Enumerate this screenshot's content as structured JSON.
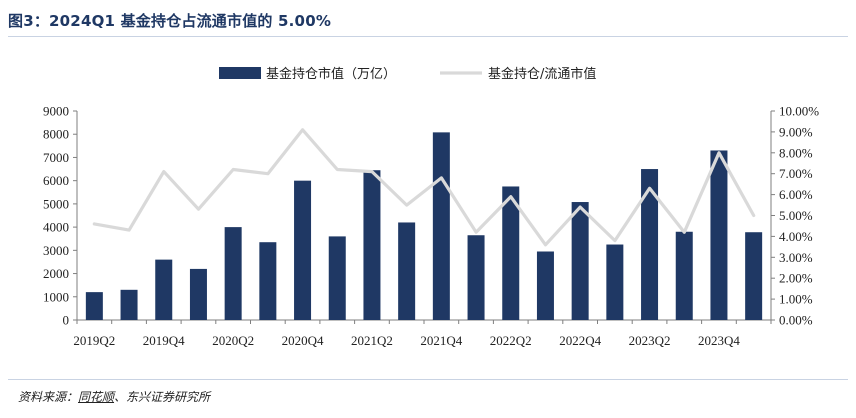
{
  "title": "图3：2024Q1 基金持仓占流通市值的 5.00%",
  "source": {
    "prefix": "资料来源：",
    "link": "同花顺",
    "suffix": "、东兴证券研究所"
  },
  "chart_data": {
    "type": "bar",
    "categories": [
      "2019Q2",
      "2019Q3",
      "2019Q4",
      "2020Q1",
      "2020Q2",
      "2020Q3",
      "2020Q4",
      "2021Q1",
      "2021Q2",
      "2021Q3",
      "2021Q4",
      "2022Q1",
      "2022Q2",
      "2022Q3",
      "2022Q4",
      "2023Q1",
      "2023Q2",
      "2023Q3",
      "2023Q4",
      "2024Q1"
    ],
    "x_tick_labels": [
      "2019Q2",
      "2019Q4",
      "2020Q2",
      "2020Q4",
      "2021Q2",
      "2021Q4",
      "2022Q2",
      "2022Q4",
      "2023Q2",
      "2023Q4"
    ],
    "series": [
      {
        "name": "基金持仓市值（万亿）",
        "type": "bar",
        "axis": "left",
        "color": "#1f3864",
        "values": [
          1200,
          1300,
          2600,
          2200,
          4000,
          3350,
          6000,
          3600,
          6450,
          4200,
          8080,
          3650,
          5750,
          2950,
          5080,
          3250,
          6500,
          3800,
          7300,
          3780
        ]
      },
      {
        "name": "基金持仓/流通市值",
        "type": "line",
        "axis": "right",
        "color": "#d9d9d9",
        "values": [
          4.6,
          4.3,
          7.1,
          5.3,
          7.2,
          7.0,
          9.1,
          7.2,
          7.1,
          5.5,
          6.8,
          4.2,
          5.9,
          3.6,
          5.4,
          3.8,
          6.3,
          4.2,
          8.0,
          5.0
        ]
      }
    ],
    "y_left": {
      "min": 0,
      "max": 9000,
      "ticks": [
        "0",
        "1000",
        "2000",
        "3000",
        "4000",
        "5000",
        "6000",
        "7000",
        "8000",
        "9000"
      ]
    },
    "y_right": {
      "min": 0,
      "max": 10,
      "ticks": [
        "0.00%",
        "1.00%",
        "2.00%",
        "3.00%",
        "4.00%",
        "5.00%",
        "6.00%",
        "7.00%",
        "8.00%",
        "9.00%",
        "10.00%"
      ]
    },
    "legend": "top-center",
    "grid": false
  }
}
